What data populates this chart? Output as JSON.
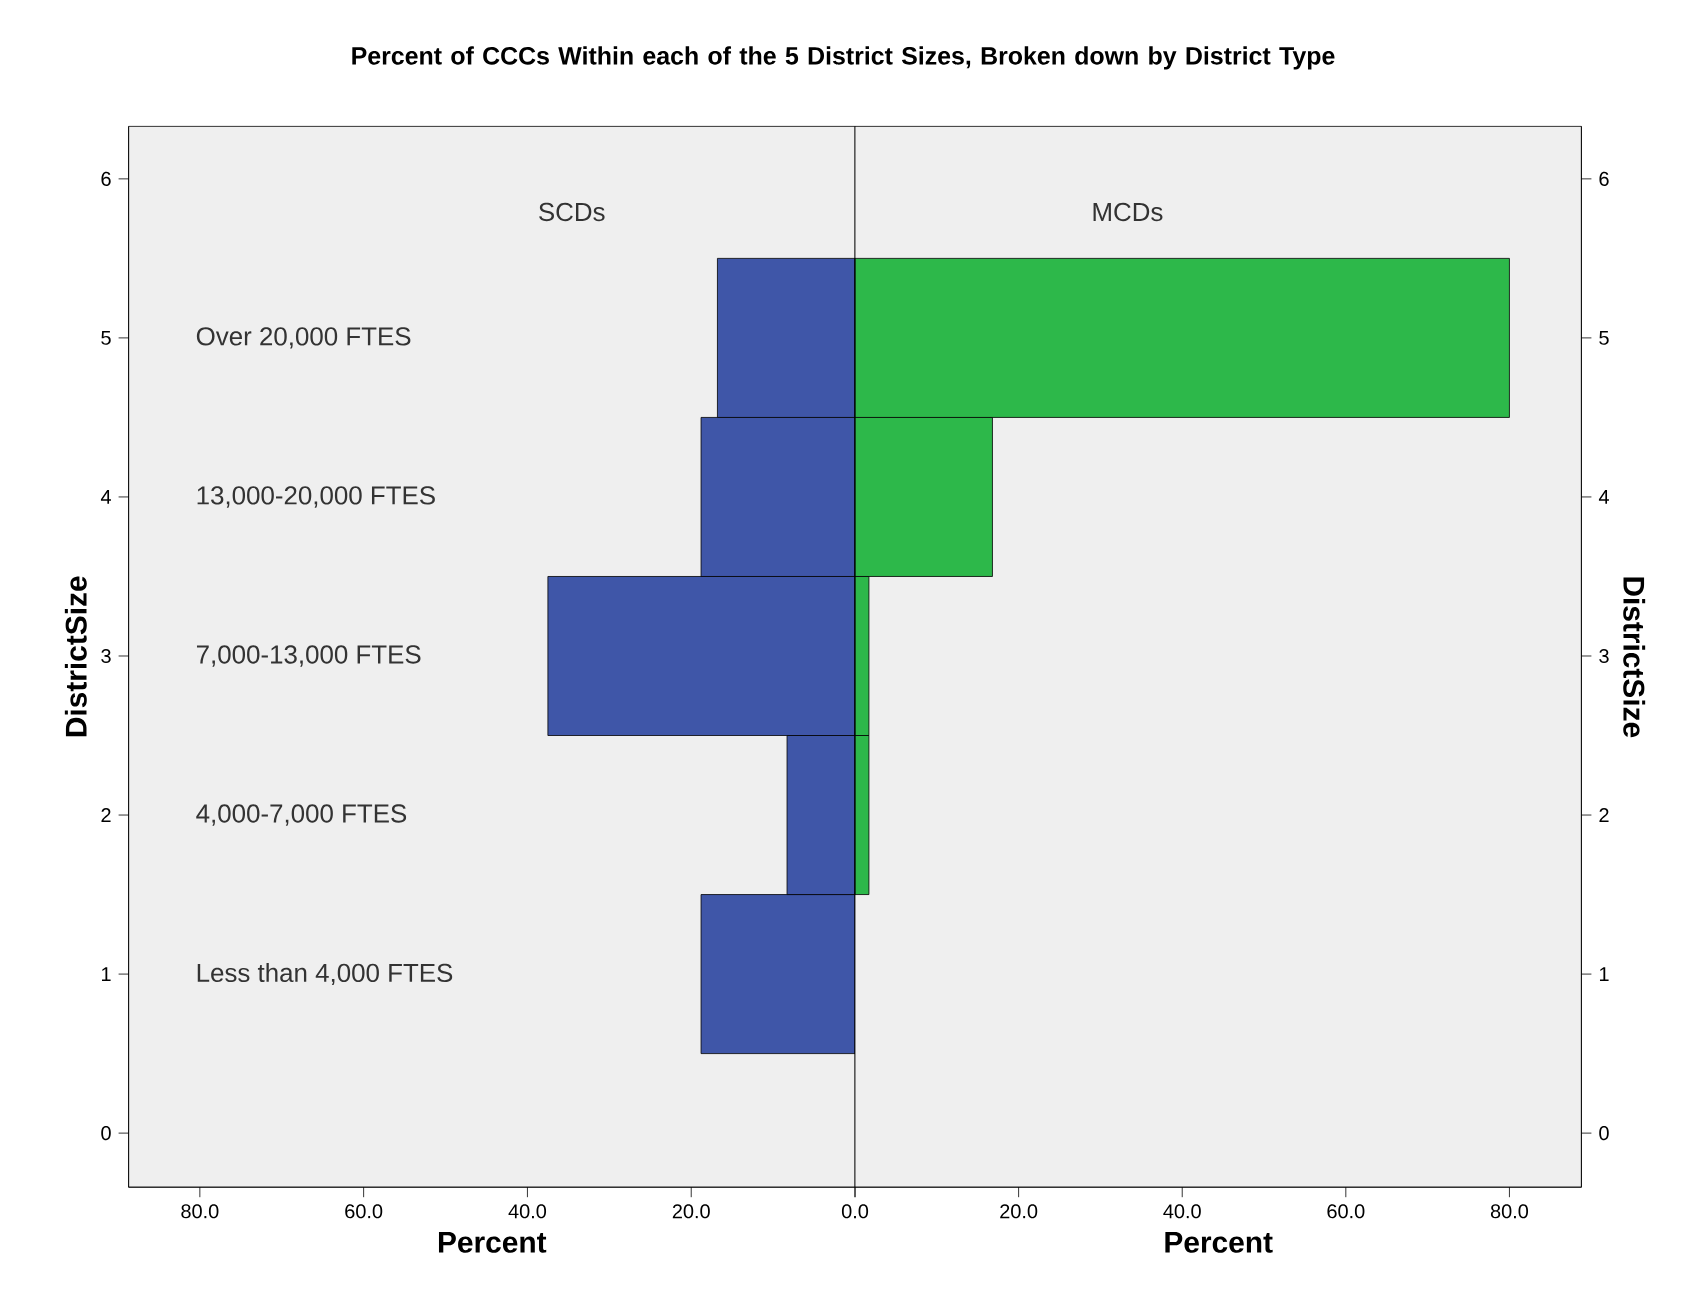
{
  "chart_data": [
    {
      "type": "bar",
      "orientation": "horizontal",
      "title": "Percent of CCCs Within each of the 5 District Sizes, Broken down by District Type",
      "subtitle": "SCDs",
      "x": [
        1,
        2,
        3,
        4,
        5
      ],
      "values": [
        18.8,
        8.3,
        37.5,
        18.8,
        16.8
      ],
      "color": "#3f56a8",
      "xlim": [
        88.7,
        0
      ],
      "xticks": [
        {
          "value": 80,
          "label": "80.0"
        },
        {
          "value": 60,
          "label": "60.0"
        },
        {
          "value": 40,
          "label": "40.0"
        },
        {
          "value": 20,
          "label": "20.0"
        },
        {
          "value": 0,
          "label": null
        }
      ],
      "ylim": [
        -0.34,
        6.33
      ],
      "yticks": [
        0,
        1,
        2,
        3,
        4,
        5,
        6
      ],
      "xlabel": "Percent",
      "ylabel": "DistrictSize",
      "annotations": [
        "Less than 4,000 FTES",
        "4,000-7,000 FTES",
        "7,000-13,000 FTES",
        "13,000-20,000 FTES",
        "Over 20,000 FTES"
      ]
    },
    {
      "type": "bar",
      "orientation": "horizontal",
      "subtitle": "MCDs",
      "x": [
        2,
        3,
        4,
        5
      ],
      "values": [
        1.7,
        1.7,
        16.8,
        80
      ],
      "color": "#2db84a",
      "xlim": [
        0,
        88.8
      ],
      "xticks": [
        {
          "value": 0,
          "label": "0.0"
        },
        {
          "value": 20,
          "label": "20.0"
        },
        {
          "value": 40,
          "label": "40.0"
        },
        {
          "value": 60,
          "label": "60.0"
        },
        {
          "value": 80,
          "label": "80.0"
        }
      ],
      "ylim": [
        -0.34,
        6.33
      ],
      "yticks": [
        0,
        1,
        2,
        3,
        4,
        5,
        6
      ],
      "xlabel": "Percent",
      "ylabel": "DistrictSize"
    }
  ]
}
